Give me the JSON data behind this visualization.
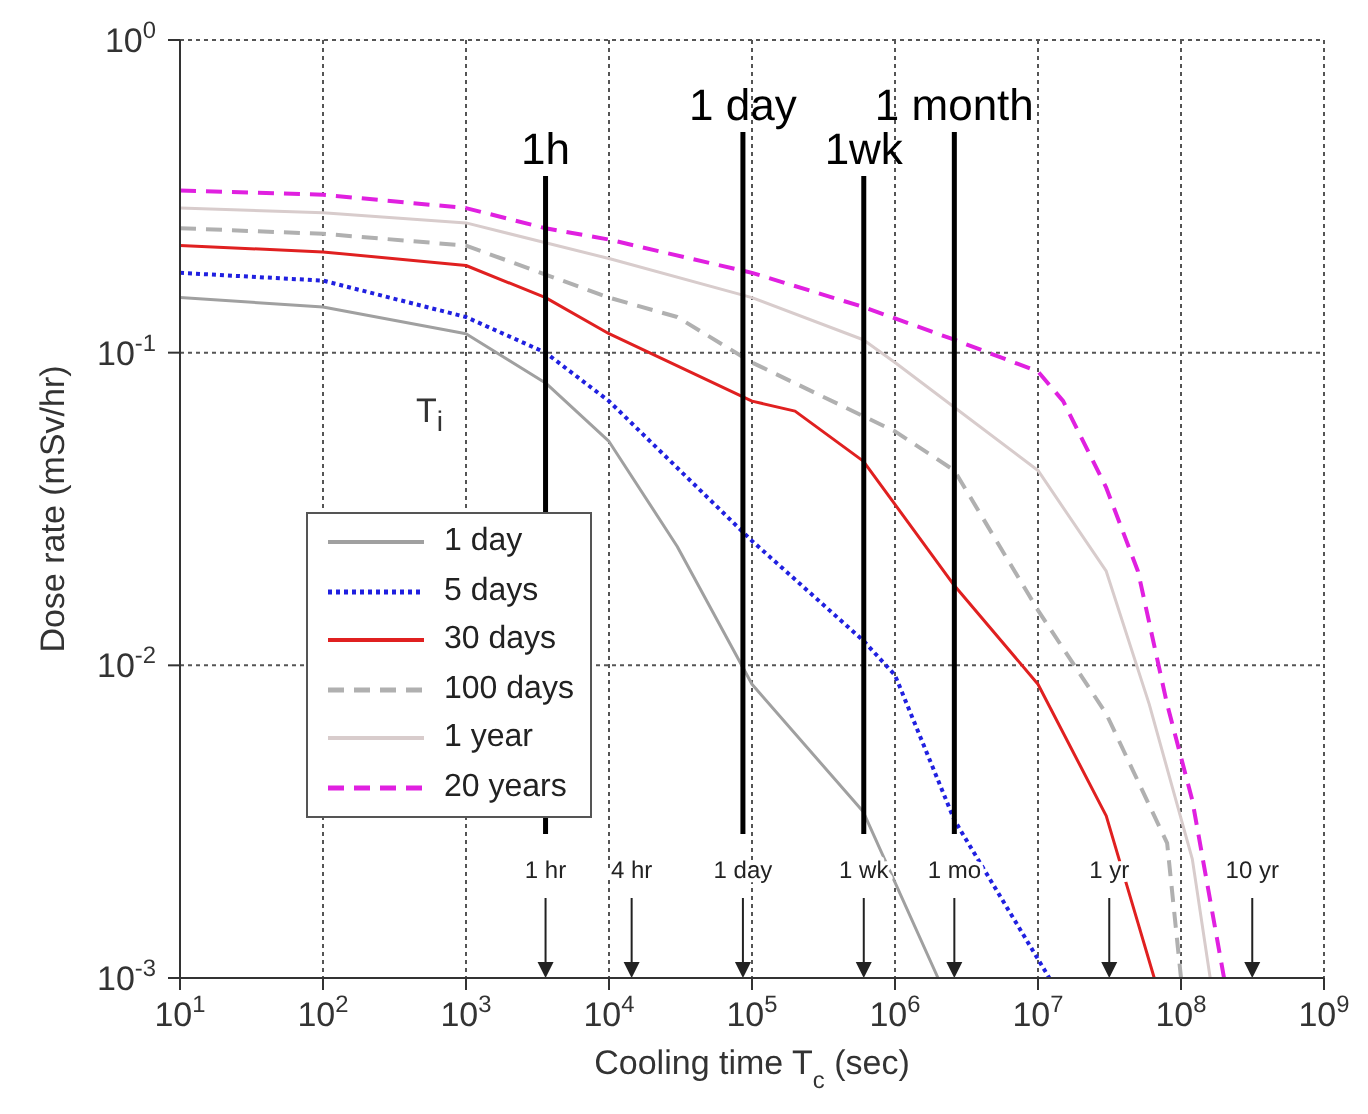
{
  "chart_data": {
    "type": "line",
    "xlabel": "Cooling time T$_{c}$ (sec)",
    "ylabel": "Dose rate (mSv/hr)",
    "legend_title": "T$_{i}$",
    "log": "xy",
    "grid": true,
    "legend": "bottom left",
    "marker": "none",
    "xlim": [
      10,
      1000000000
    ],
    "ylim": [
      0.001,
      1
    ],
    "xticks": [
      {
        "value": 10,
        "label": "10$^{1}$"
      },
      {
        "value": 100,
        "label": "10$^{2}$"
      },
      {
        "value": 1000,
        "label": "10$^{3}$"
      },
      {
        "value": 10000,
        "label": "10$^{4}$"
      },
      {
        "value": 100000,
        "label": "10$^{5}$"
      },
      {
        "value": 1000000,
        "label": "10$^{6}$"
      },
      {
        "value": 10000000,
        "label": "10$^{7}$"
      },
      {
        "value": 100000000,
        "label": "10$^{8}$"
      },
      {
        "value": 1000000000,
        "label": "10$^{9}$"
      }
    ],
    "yticks": [
      {
        "value": 0.001,
        "label": "10$^{-3}$"
      },
      {
        "value": 0.01,
        "label": "10$^{-2}$"
      },
      {
        "value": 0.1,
        "label": "10$^{-1}$"
      },
      {
        "value": 1,
        "label": "10$^{0}$"
      }
    ],
    "series": [
      {
        "name": "1 day",
        "color": "#a0a0a0",
        "line_style": "solid",
        "x": [
          10,
          100,
          1000,
          3600,
          10000,
          30000,
          100000,
          600000,
          2000000
        ],
        "values": [
          0.15,
          0.14,
          0.115,
          0.08,
          0.052,
          0.024,
          0.0087,
          0.0034,
          0.001
        ]
      },
      {
        "name": "5 days",
        "color": "#2020e0",
        "line_style": "dotted",
        "x": [
          10,
          100,
          1000,
          3600,
          10000,
          100000,
          600000,
          1000000,
          2600000,
          12000000
        ],
        "values": [
          0.18,
          0.17,
          0.13,
          0.1,
          0.07,
          0.025,
          0.012,
          0.0093,
          0.0032,
          0.001
        ]
      },
      {
        "name": "30 days",
        "color": "#e02020",
        "line_style": "solid",
        "x": [
          10,
          100,
          1000,
          3600,
          10000,
          100000,
          200000,
          600000,
          2600000,
          10000000,
          30000000,
          50000000,
          65000000
        ],
        "values": [
          0.22,
          0.21,
          0.19,
          0.15,
          0.115,
          0.07,
          0.065,
          0.045,
          0.018,
          0.0087,
          0.0033,
          0.0015,
          0.001
        ]
      },
      {
        "name": "100 days",
        "color": "#b0b0b0",
        "line_style": "dashed",
        "x": [
          10,
          100,
          1000,
          10000,
          30000,
          100000,
          1000000,
          2600000,
          10000000,
          30000000,
          80000000,
          100000000
        ],
        "values": [
          0.25,
          0.24,
          0.22,
          0.15,
          0.13,
          0.093,
          0.056,
          0.042,
          0.015,
          0.007,
          0.0027,
          0.001
        ]
      },
      {
        "name": "1 year",
        "color": "#d8cccc",
        "line_style": "solid",
        "x": [
          10,
          100,
          1000,
          10000,
          100000,
          600000,
          1000000,
          10000000,
          30000000,
          60000000,
          120000000,
          160000000
        ],
        "values": [
          0.29,
          0.28,
          0.26,
          0.2,
          0.15,
          0.11,
          0.093,
          0.042,
          0.02,
          0.0075,
          0.0024,
          0.001
        ]
      },
      {
        "name": "20 years",
        "color": "#e020e0",
        "line_style": "dashed",
        "x": [
          10,
          100,
          1000,
          3600,
          10000,
          100000,
          600000,
          2600000,
          10000000,
          15000000,
          30000000,
          50000000,
          80000000,
          120000000,
          200000000
        ],
        "values": [
          0.33,
          0.32,
          0.29,
          0.25,
          0.23,
          0.18,
          0.14,
          0.11,
          0.087,
          0.07,
          0.037,
          0.02,
          0.0075,
          0.0037,
          0.001
        ]
      }
    ],
    "ref_lines": [
      {
        "axis": "x",
        "value": 3600,
        "label": "1h",
        "color": "#000000"
      },
      {
        "axis": "x",
        "value": 86400,
        "label": "1 day",
        "color": "#000000"
      },
      {
        "axis": "x",
        "value": 604800,
        "label": "1wk",
        "color": "#000000"
      },
      {
        "axis": "x",
        "value": 2600000,
        "label": "1 month",
        "color": "#000000"
      },
      {
        "axis": "x",
        "value": 3600,
        "label": "1 hr"
      },
      {
        "axis": "x",
        "value": 14400,
        "label": "4 hr"
      },
      {
        "axis": "x",
        "value": 86400,
        "label": "1 day"
      },
      {
        "axis": "x",
        "value": 604800,
        "label": "1 wk"
      },
      {
        "axis": "x",
        "value": 2600000,
        "label": "1 mo"
      },
      {
        "axis": "x",
        "value": 31500000,
        "label": "1 yr"
      },
      {
        "axis": "x",
        "value": 315000000,
        "label": "10 yr"
      }
    ]
  }
}
